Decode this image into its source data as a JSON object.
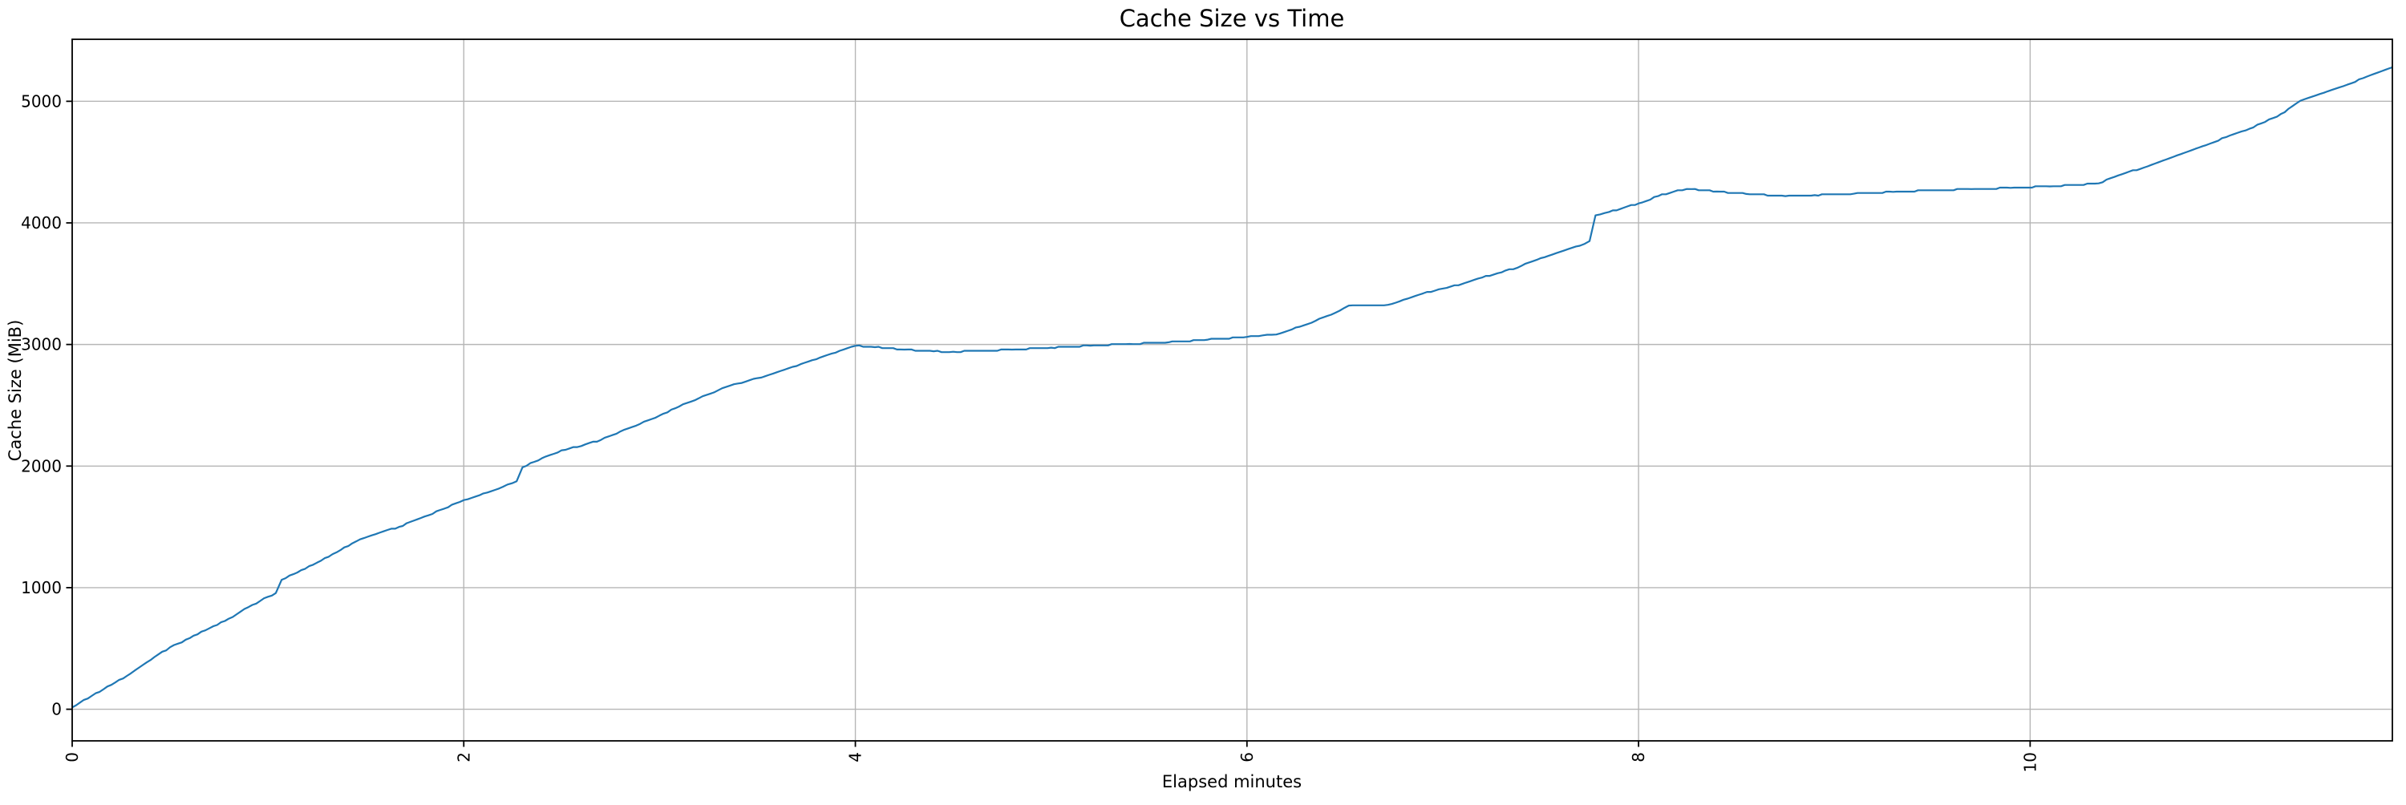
{
  "title": "Cache Size vs Time",
  "chart_data": {
    "type": "line",
    "title": "Cache Size vs Time",
    "xlabel": "Elapsed minutes",
    "ylabel": "Cache Size (MiB)",
    "x_ticks": [
      0,
      2,
      4,
      6,
      8,
      10
    ],
    "y_ticks": [
      0,
      1000,
      2000,
      3000,
      4000,
      5000
    ],
    "xlim": [
      0,
      11.85
    ],
    "ylim": [
      -260,
      5510
    ],
    "grid": true,
    "legend": "none",
    "x_tick_rotation_deg": 90,
    "line_color": "#1f77b4",
    "grid_color": "#b6b6b6",
    "spine_color": "#000000",
    "series": [
      {
        "name": "cache_size",
        "x": [
          0,
          0.1,
          0.2,
          0.3,
          0.4,
          0.5,
          0.6,
          0.7,
          0.8,
          0.9,
          1.0,
          1.04,
          1.07,
          1.15,
          1.25,
          1.35,
          1.45,
          1.55,
          1.67,
          1.8,
          1.9,
          2.0,
          2.1,
          2.2,
          2.27,
          2.3,
          2.4,
          2.5,
          2.6,
          2.7,
          2.8,
          2.9,
          3.0,
          3.1,
          3.2,
          3.3,
          3.4,
          3.5,
          3.6,
          3.7,
          3.8,
          3.9,
          4.0,
          4.1,
          4.25,
          4.4,
          4.5,
          4.65,
          4.8,
          5.0,
          5.2,
          5.4,
          5.6,
          5.8,
          6.0,
          6.08,
          6.15,
          6.25,
          6.35,
          6.45,
          6.52,
          6.62,
          6.72,
          6.8,
          6.9,
          7.0,
          7.1,
          7.2,
          7.3,
          7.4,
          7.5,
          7.6,
          7.7,
          7.75,
          7.78,
          7.85,
          8.0,
          8.1,
          8.2,
          8.27,
          8.4,
          8.55,
          8.75,
          8.9,
          9.1,
          9.3,
          9.5,
          9.7,
          9.9,
          10.1,
          10.35,
          10.45,
          10.6,
          10.75,
          10.9,
          11.0,
          11.1,
          11.2,
          11.3,
          11.38,
          11.5,
          11.6,
          11.7,
          11.85
        ],
        "y": [
          15,
          110,
          200,
          295,
          405,
          510,
          585,
          665,
          745,
          840,
          925,
          955,
          1065,
          1125,
          1205,
          1290,
          1380,
          1440,
          1500,
          1585,
          1650,
          1720,
          1775,
          1830,
          1875,
          1990,
          2065,
          2130,
          2165,
          2215,
          2285,
          2347,
          2415,
          2490,
          2557,
          2624,
          2679,
          2723,
          2772,
          2823,
          2878,
          2933,
          2989,
          2978,
          2958,
          2944,
          2940,
          2948,
          2958,
          2974,
          2990,
          3004,
          3018,
          3040,
          3062,
          3075,
          3082,
          3140,
          3195,
          3260,
          3320,
          3322,
          3326,
          3368,
          3420,
          3460,
          3498,
          3550,
          3593,
          3645,
          3710,
          3762,
          3812,
          3850,
          4062,
          4090,
          4160,
          4220,
          4268,
          4278,
          4258,
          4238,
          4220,
          4228,
          4240,
          4255,
          4268,
          4278,
          4288,
          4300,
          4325,
          4390,
          4465,
          4555,
          4640,
          4705,
          4760,
          4830,
          4910,
          5005,
          5070,
          5125,
          5190,
          5280
        ]
      }
    ]
  }
}
